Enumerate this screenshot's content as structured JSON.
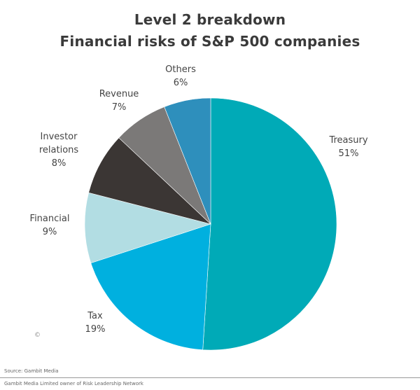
{
  "chart_data": {
    "type": "pie",
    "title": "Level 2 breakdown",
    "subtitle": "Financial risks of S&P 500 companies",
    "start_angle_deg": 0,
    "direction": "clockwise",
    "slices": [
      {
        "label_lines": [
          "Treasury"
        ],
        "value_label": "51%",
        "value": 51,
        "color": "#00aab7"
      },
      {
        "label_lines": [
          "Tax"
        ],
        "value_label": "19%",
        "value": 19,
        "color": "#00b0df"
      },
      {
        "label_lines": [
          "Financial"
        ],
        "value_label": "9%",
        "value": 9,
        "color": "#b2dde3"
      },
      {
        "label_lines": [
          "Investor",
          "relations"
        ],
        "value_label": "8%",
        "value": 8,
        "color": "#3b3634"
      },
      {
        "label_lines": [
          "Revenue"
        ],
        "value_label": "7%",
        "value": 7,
        "color": "#7b7978"
      },
      {
        "label_lines": [
          "Others"
        ],
        "value_label": "6%",
        "value": 6,
        "color": "#2e8fbc"
      }
    ]
  },
  "copyright": "©",
  "source": "Source: Gambit Media",
  "footer": "Gambit Media Limited owner of Risk Leadership Network"
}
